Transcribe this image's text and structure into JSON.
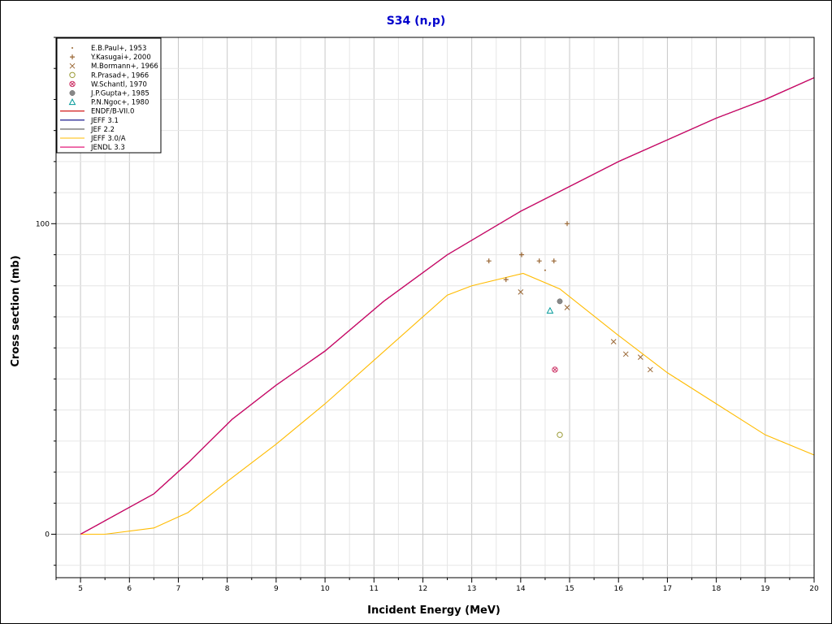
{
  "chart_data": {
    "type": "line",
    "title": "S34 (n,p)",
    "xlabel": "Incident Energy (MeV)",
    "ylabel": "Cross section (mb)",
    "xlim": [
      4.5,
      20
    ],
    "ylim": [
      -14,
      160
    ],
    "x_ticks": [
      5,
      6,
      7,
      8,
      9,
      10,
      11,
      12,
      13,
      14,
      15,
      16,
      17,
      18,
      19,
      20
    ],
    "y_ticks": [
      0,
      100
    ],
    "grid": true,
    "legend_position": "top-left",
    "series": [
      {
        "name": "ENDF/B-VII.0",
        "kind": "line",
        "color": "#cc0000",
        "x": [
          5,
          6.5,
          7.2,
          8.1,
          9,
          10,
          11.2,
          12.5,
          14,
          15,
          16,
          17,
          18,
          19,
          20
        ],
        "y": [
          0,
          13,
          23,
          37,
          48,
          59,
          75,
          90,
          104,
          112,
          120,
          127,
          134,
          140,
          147
        ]
      },
      {
        "name": "JEFF 3.1",
        "kind": "line",
        "color": "#000080",
        "x": [
          5,
          6.5,
          7.2,
          8.1,
          9,
          10,
          11.2,
          12.5,
          14,
          15,
          16,
          17,
          18,
          19,
          20
        ],
        "y": [
          0,
          13,
          23,
          37,
          48,
          59,
          75,
          90,
          104,
          112,
          120,
          127,
          134,
          140,
          147
        ]
      },
      {
        "name": "JEF 2.2",
        "kind": "line",
        "color": "#555555",
        "x": [
          5,
          6.5,
          7.2,
          8.1,
          9,
          10,
          11.2,
          12.5,
          14,
          15,
          16,
          17,
          18,
          19,
          20
        ],
        "y": [
          0,
          13,
          23,
          37,
          48,
          59,
          75,
          90,
          104,
          112,
          120,
          127,
          134,
          140,
          147
        ]
      },
      {
        "name": "JEFF 3.0/A",
        "kind": "line",
        "color": "#ffbb00",
        "x": [
          5,
          5.5,
          6.5,
          7.2,
          8,
          9,
          10,
          11,
          12,
          12.5,
          13,
          14.05,
          14.8,
          16,
          17,
          18,
          19,
          20
        ],
        "y": [
          0,
          0,
          2,
          7,
          17,
          29,
          42,
          56,
          70,
          77,
          80,
          84,
          79,
          64,
          52,
          42,
          32,
          25.5
        ]
      },
      {
        "name": "JENDL 3.3",
        "kind": "line",
        "color": "#e0006a",
        "x": [
          5,
          6.5,
          7.2,
          8.1,
          9,
          10,
          11.2,
          12.5,
          14,
          15,
          16,
          17,
          18,
          19,
          20
        ],
        "y": [
          0,
          13,
          23,
          37,
          48,
          59,
          75,
          90,
          104,
          112,
          120,
          127,
          134,
          140,
          147
        ]
      },
      {
        "name": "E.B.Paul+, 1953",
        "kind": "points",
        "marker": "dot",
        "color": "#996633",
        "x": [
          14.5
        ],
        "y": [
          85
        ]
      },
      {
        "name": "Y.Kasugai+, 2000",
        "kind": "points",
        "marker": "plus",
        "color": "#996633",
        "x": [
          13.35,
          13.7,
          14.02,
          14.38,
          14.68,
          14.95
        ],
        "y": [
          88,
          82,
          90,
          88,
          88,
          100
        ]
      },
      {
        "name": "M.Bormann+, 1966",
        "kind": "points",
        "marker": "cross",
        "color": "#996633",
        "x": [
          14.0,
          14.95,
          15.9,
          16.15,
          16.45,
          16.65
        ],
        "y": [
          78,
          73,
          62,
          58,
          57,
          53
        ]
      },
      {
        "name": "R.Prasad+, 1966",
        "kind": "points",
        "marker": "circle",
        "color": "#999933",
        "x": [
          14.8
        ],
        "y": [
          32
        ]
      },
      {
        "name": "W.Schantl, 1970",
        "kind": "points",
        "marker": "circlecross",
        "color": "#cc3366",
        "x": [
          14.7
        ],
        "y": [
          53
        ]
      },
      {
        "name": "J.P.Gupta+, 1985",
        "kind": "points",
        "marker": "filledcircle",
        "color": "#888888",
        "x": [
          14.8
        ],
        "y": [
          75
        ]
      },
      {
        "name": "P.N.Ngoc+, 1980",
        "kind": "points",
        "marker": "triangle",
        "color": "#009999",
        "x": [
          14.6
        ],
        "y": [
          72
        ]
      }
    ]
  }
}
